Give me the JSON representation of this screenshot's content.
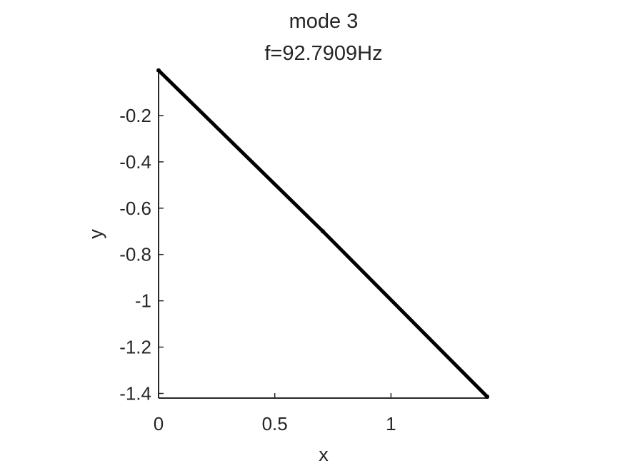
{
  "chart_data": {
    "type": "line",
    "title": [
      "mode 3",
      "f=92.7909Hz"
    ],
    "xlabel": "x",
    "ylabel": "y",
    "xlim": [
      0,
      1.42
    ],
    "ylim": [
      -1.42,
      0
    ],
    "xticks": [
      0,
      0.5,
      1
    ],
    "xtick_labels": [
      "0",
      "0.5",
      "1"
    ],
    "yticks": [
      -0.2,
      -0.4,
      -0.6,
      -0.8,
      -1,
      -1.2,
      -1.4
    ],
    "ytick_labels": [
      "-0.2",
      "-0.4",
      "-0.6",
      "-0.8",
      "-1",
      "-1.2",
      "-1.4"
    ],
    "grid": false,
    "series": [
      {
        "x": [
          0,
          0.707,
          1.414
        ],
        "y": [
          -0.005,
          -0.7,
          -1.414
        ],
        "color": "#000000"
      }
    ]
  }
}
